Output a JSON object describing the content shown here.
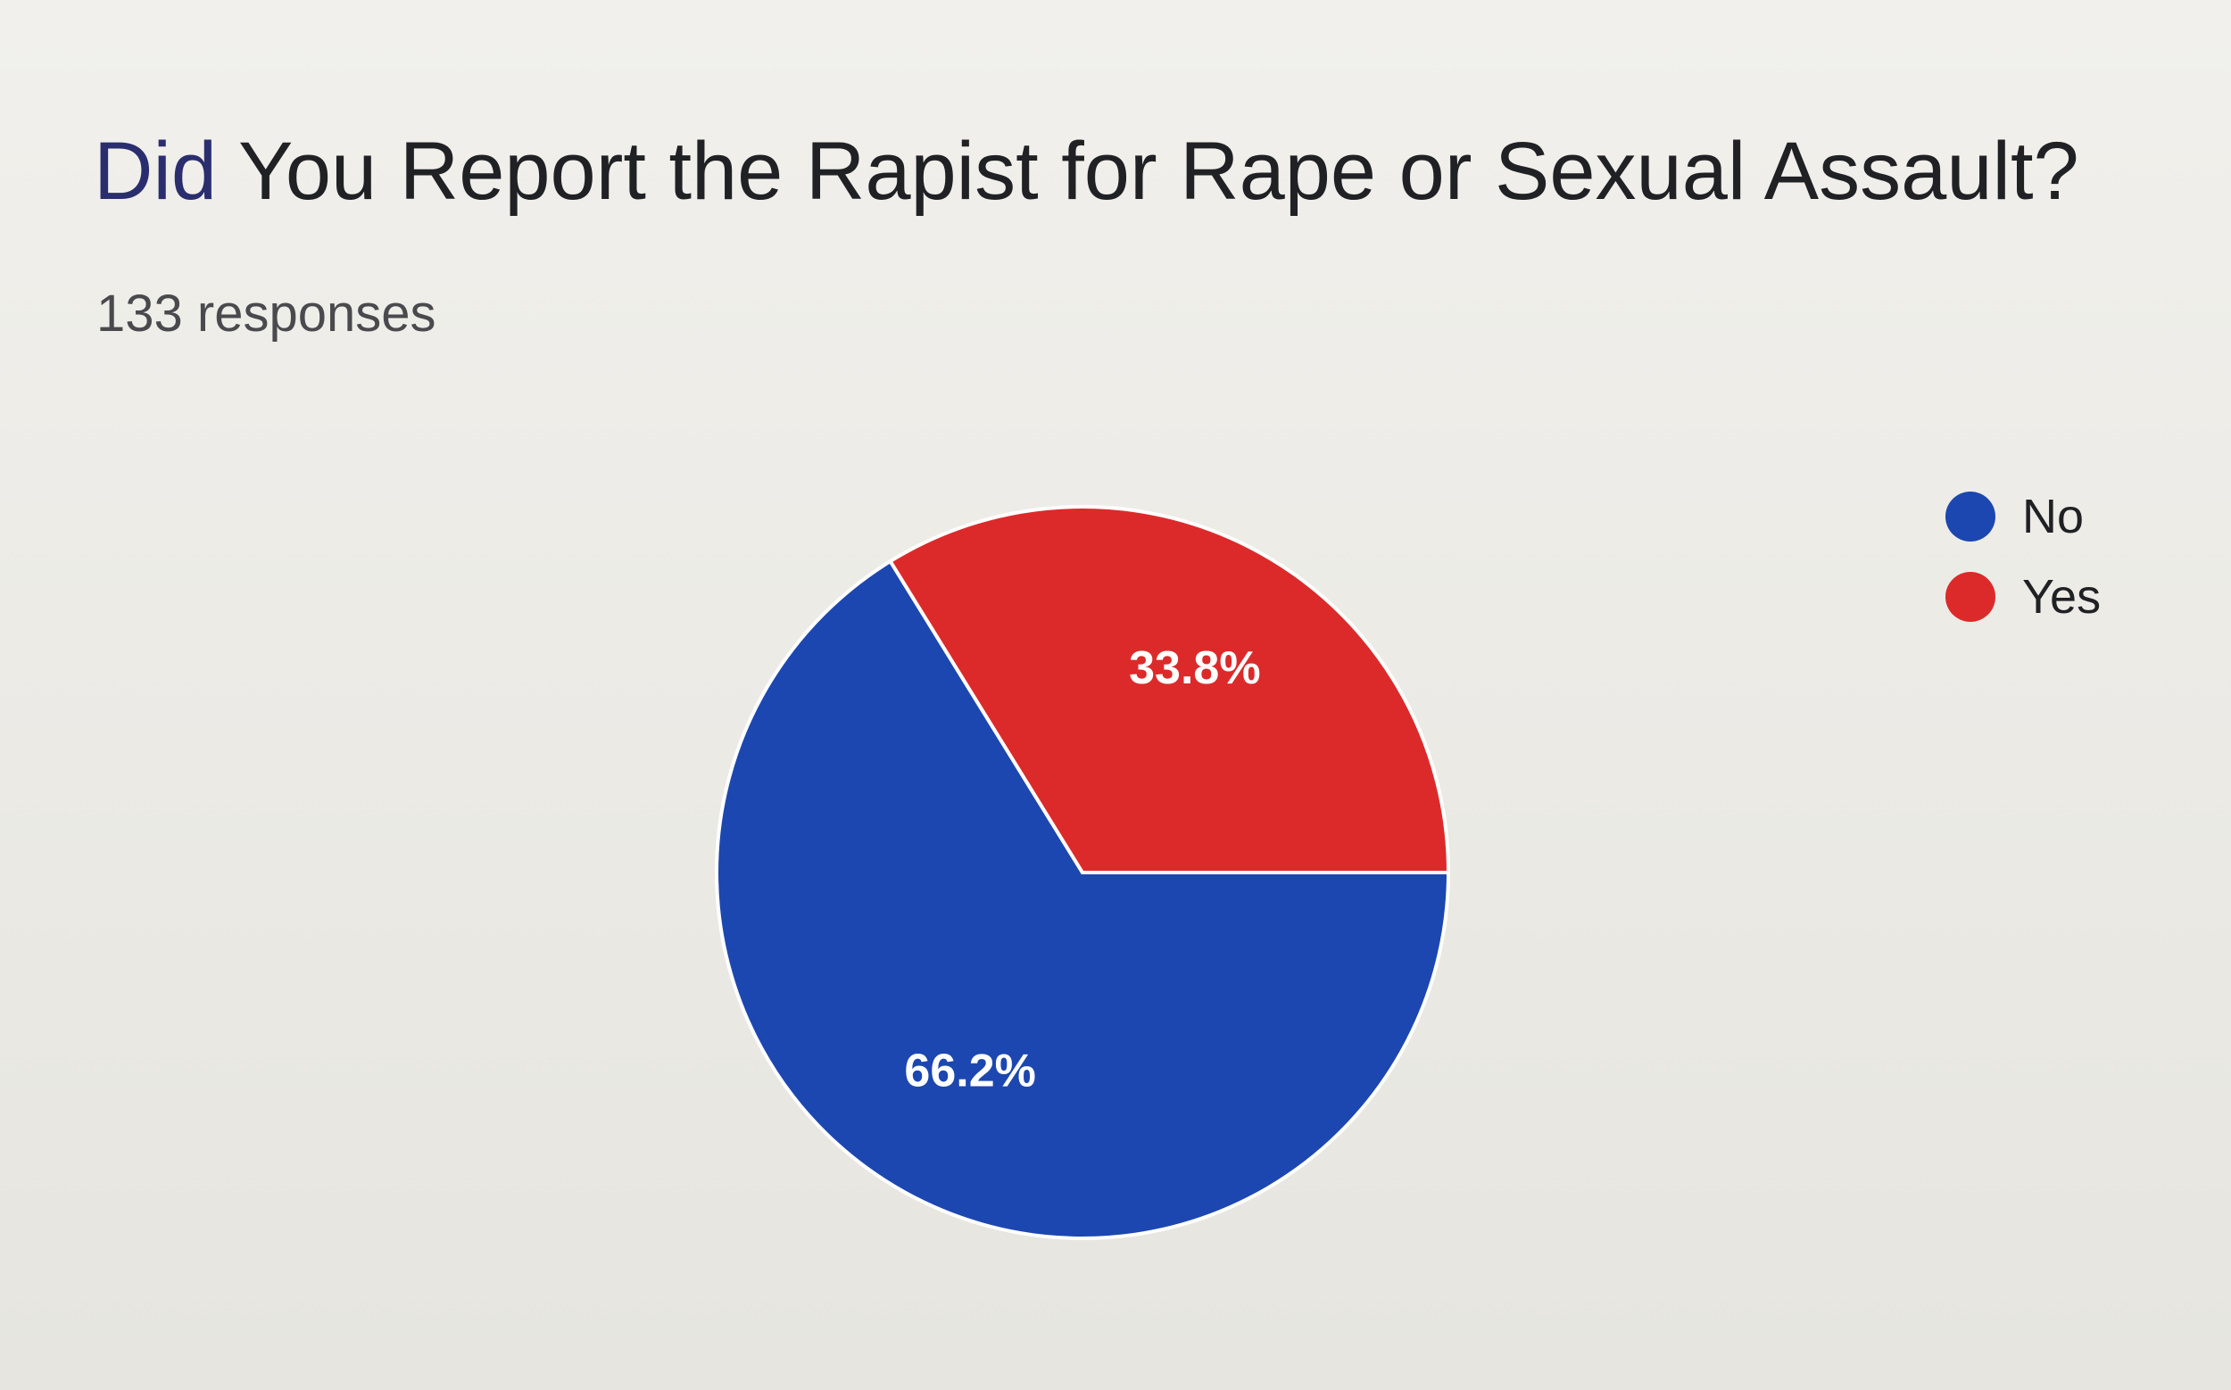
{
  "colors": {
    "no": "#1c47b0",
    "yes": "#dc2a2a"
  },
  "chart_data": {
    "type": "pie",
    "title": "Did You Report the Rapist for Rape or Sexual Assault?",
    "title_first_word": "Did",
    "title_rest": " You Report the Rapist for Rape or Sexual Assault?",
    "subtitle": "133 responses",
    "categories": [
      "No",
      "Yes"
    ],
    "values": [
      66.2,
      33.8
    ],
    "value_labels": [
      "66.2%",
      "33.8%"
    ],
    "legend_position": "top-right"
  }
}
